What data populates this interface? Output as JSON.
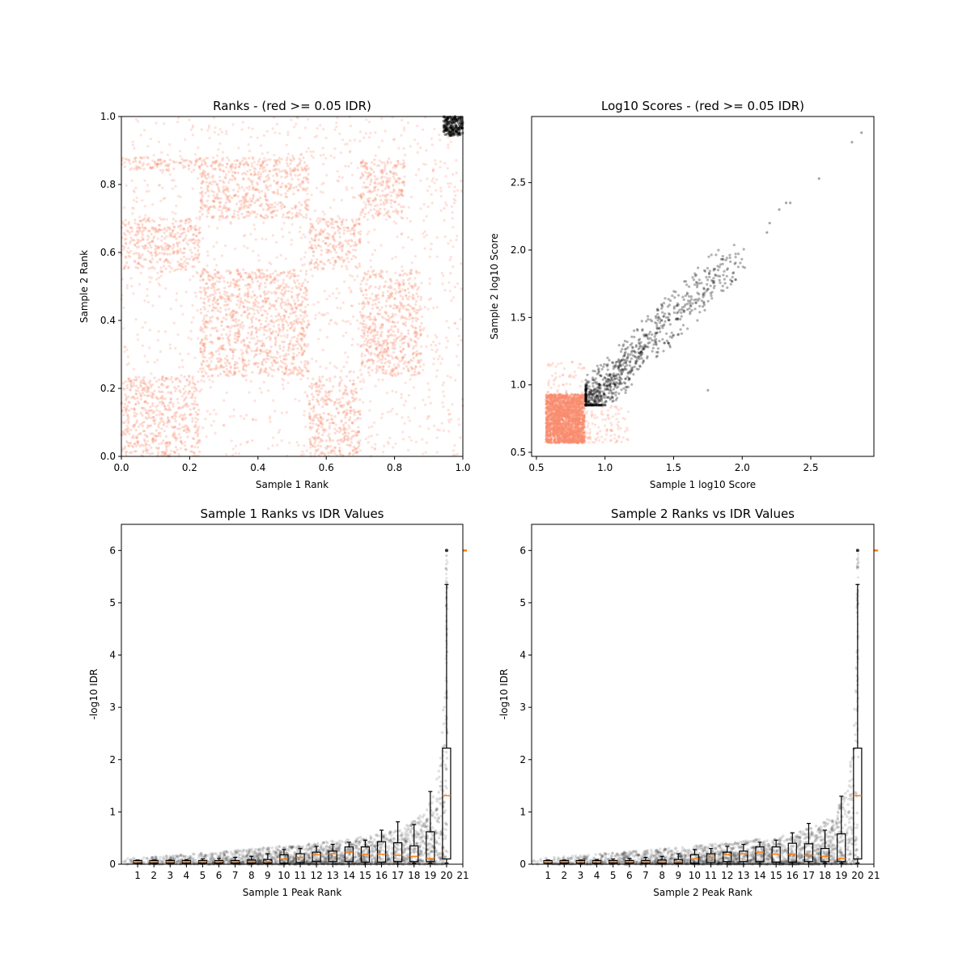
{
  "colors": {
    "fail_idr": "#fa8c6e",
    "pass_idr": "#000000",
    "median": "#ff7f0e"
  },
  "chart_data": [
    {
      "type": "scatter",
      "title": "Ranks - (red >= 0.05 IDR)",
      "xlabel": "Sample 1 Rank",
      "ylabel": "Sample 2 Rank",
      "xlim": [
        0,
        1
      ],
      "ylim": [
        0,
        1
      ],
      "xticks": [
        "0.0",
        "0.2",
        "0.4",
        "0.6",
        "0.8",
        "1.0"
      ],
      "yticks": [
        "0.0",
        "0.2",
        "0.4",
        "0.6",
        "0.8",
        "1.0"
      ],
      "grid": false,
      "dense_blocks_red": [
        {
          "x": [
            0.0,
            0.23
          ],
          "y": [
            0.0,
            0.235
          ]
        },
        {
          "x": [
            0.55,
            0.7
          ],
          "y": [
            0.0,
            0.235
          ]
        },
        {
          "x": [
            0.23,
            0.55
          ],
          "y": [
            0.235,
            0.55
          ]
        },
        {
          "x": [
            0.7,
            0.88
          ],
          "y": [
            0.235,
            0.55
          ]
        },
        {
          "x": [
            0.0,
            0.23
          ],
          "y": [
            0.55,
            0.7
          ]
        },
        {
          "x": [
            0.55,
            0.7
          ],
          "y": [
            0.55,
            0.7
          ]
        },
        {
          "x": [
            0.23,
            0.55
          ],
          "y": [
            0.7,
            0.88
          ]
        },
        {
          "x": [
            0.7,
            0.83
          ],
          "y": [
            0.7,
            0.88
          ]
        },
        {
          "x": [
            0.0,
            0.23
          ],
          "y": [
            0.84,
            0.88
          ]
        }
      ],
      "black_cluster": {
        "x": [
          0.93,
          1.0
        ],
        "y": [
          0.93,
          1.0
        ]
      }
    },
    {
      "type": "scatter",
      "title": "Log10 Scores - (red >= 0.05 IDR)",
      "xlabel": "Sample 1 log10 Score",
      "ylabel": "Sample 2 log10 Score",
      "xlim": [
        0.465,
        2.96
      ],
      "ylim": [
        0.47,
        2.99
      ],
      "xticks": [
        "0.5",
        "1.0",
        "1.5",
        "2.0",
        "2.5"
      ],
      "yticks": [
        "0.5",
        "1.0",
        "1.5",
        "2.0",
        "2.5"
      ],
      "grid": false,
      "red_dense_region": {
        "x": [
          0.57,
          0.85
        ],
        "y": [
          0.57,
          0.93
        ]
      },
      "black_outliers": [
        [
          2.87,
          2.87
        ],
        [
          2.8,
          2.8
        ],
        [
          2.56,
          2.53
        ],
        [
          2.35,
          2.35
        ],
        [
          2.32,
          2.35
        ],
        [
          2.27,
          2.3
        ],
        [
          2.2,
          2.2
        ],
        [
          2.18,
          2.13
        ],
        [
          1.75,
          0.96
        ]
      ]
    },
    {
      "type": "box+scatter",
      "title": "Sample 1 Ranks vs IDR Values",
      "xlabel": "Sample 1 Peak Rank",
      "ylabel": "-log10 IDR",
      "xlim": [
        0,
        21
      ],
      "ylim": [
        0,
        6.5
      ],
      "xticks": [
        "1",
        "2",
        "3",
        "4",
        "5",
        "6",
        "7",
        "8",
        "9",
        "10",
        "11",
        "12",
        "13",
        "14",
        "15",
        "16",
        "17",
        "18",
        "19",
        "20",
        "21"
      ],
      "yticks": [
        "0",
        "1",
        "2",
        "3",
        "4",
        "5",
        "6"
      ],
      "boxes": [
        [
          0.02,
          0.05,
          0.07,
          0,
          0.08
        ],
        [
          0.02,
          0.05,
          0.07,
          0,
          0.08
        ],
        [
          0.02,
          0.05,
          0.07,
          0,
          0.08
        ],
        [
          0.02,
          0.05,
          0.07,
          0,
          0.09
        ],
        [
          0.02,
          0.05,
          0.07,
          0,
          0.1
        ],
        [
          0.02,
          0.05,
          0.07,
          0,
          0.11
        ],
        [
          0.02,
          0.05,
          0.07,
          0,
          0.13
        ],
        [
          0.02,
          0.05,
          0.08,
          0,
          0.15
        ],
        [
          0.02,
          0.05,
          0.09,
          0,
          0.2
        ],
        [
          0.02,
          0.1,
          0.18,
          0,
          0.28
        ],
        [
          0.03,
          0.13,
          0.2,
          0,
          0.3
        ],
        [
          0.05,
          0.18,
          0.23,
          0,
          0.34
        ],
        [
          0.05,
          0.2,
          0.25,
          0,
          0.38
        ],
        [
          0.05,
          0.23,
          0.33,
          0,
          0.42
        ],
        [
          0.04,
          0.19,
          0.33,
          0,
          0.46
        ],
        [
          0.04,
          0.19,
          0.43,
          0,
          0.65
        ],
        [
          0.05,
          0.17,
          0.41,
          0,
          0.81
        ],
        [
          0.05,
          0.15,
          0.35,
          0.02,
          0.76
        ],
        [
          0.05,
          0.11,
          0.62,
          0.02,
          1.39
        ],
        [
          0.1,
          1.31,
          2.22,
          0.02,
          5.35
        ]
      ],
      "box_stats_order": [
        "q1",
        "median",
        "q3",
        "whisker_low",
        "whisker_high"
      ],
      "fliers": [
        [
          20,
          6.0
        ]
      ],
      "extra_median": [
        21,
        6.0
      ]
    },
    {
      "type": "box+scatter",
      "title": "Sample 2 Ranks vs IDR Values",
      "xlabel": "Sample 2 Peak Rank",
      "ylabel": "-log10 IDR",
      "xlim": [
        0,
        21
      ],
      "ylim": [
        0,
        6.5
      ],
      "xticks": [
        "1",
        "2",
        "3",
        "4",
        "5",
        "6",
        "7",
        "8",
        "9",
        "10",
        "11",
        "12",
        "13",
        "14",
        "15",
        "16",
        "17",
        "18",
        "19",
        "20",
        "21"
      ],
      "yticks": [
        "0",
        "1",
        "2",
        "3",
        "4",
        "5",
        "6"
      ],
      "boxes": [
        [
          0.02,
          0.05,
          0.07,
          0,
          0.08
        ],
        [
          0.02,
          0.05,
          0.07,
          0,
          0.08
        ],
        [
          0.02,
          0.05,
          0.07,
          0,
          0.08
        ],
        [
          0.02,
          0.05,
          0.07,
          0,
          0.09
        ],
        [
          0.02,
          0.05,
          0.07,
          0,
          0.1
        ],
        [
          0.02,
          0.05,
          0.07,
          0,
          0.11
        ],
        [
          0.02,
          0.05,
          0.07,
          0,
          0.13
        ],
        [
          0.02,
          0.05,
          0.08,
          0,
          0.15
        ],
        [
          0.02,
          0.05,
          0.09,
          0,
          0.2
        ],
        [
          0.02,
          0.1,
          0.18,
          0,
          0.28
        ],
        [
          0.03,
          0.13,
          0.2,
          0,
          0.3
        ],
        [
          0.05,
          0.18,
          0.23,
          0,
          0.34
        ],
        [
          0.05,
          0.2,
          0.25,
          0,
          0.38
        ],
        [
          0.05,
          0.23,
          0.33,
          0,
          0.42
        ],
        [
          0.04,
          0.19,
          0.33,
          0,
          0.46
        ],
        [
          0.04,
          0.19,
          0.4,
          0,
          0.6
        ],
        [
          0.05,
          0.17,
          0.39,
          0,
          0.78
        ],
        [
          0.05,
          0.15,
          0.3,
          0.02,
          0.65
        ],
        [
          0.05,
          0.11,
          0.58,
          0.02,
          1.3
        ],
        [
          0.1,
          1.31,
          2.22,
          0.02,
          5.35
        ]
      ],
      "box_stats_order": [
        "q1",
        "median",
        "q3",
        "whisker_low",
        "whisker_high"
      ],
      "fliers": [
        [
          20,
          6.0
        ]
      ],
      "extra_median": [
        21,
        6.0
      ]
    }
  ]
}
